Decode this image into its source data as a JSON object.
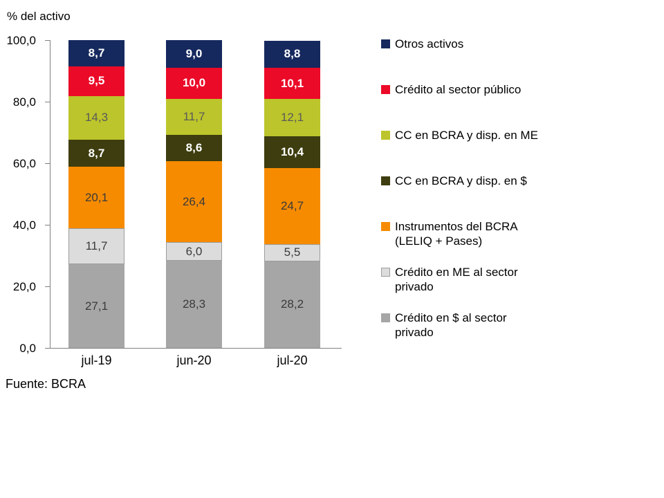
{
  "title": "% del activo",
  "source": "Fuente: BCRA",
  "chart_data": {
    "type": "bar",
    "stacked": true,
    "title": "% del activo",
    "ylabel": "",
    "xlabel": "",
    "ylim": [
      0,
      100
    ],
    "grid": false,
    "legend_position": "right",
    "yticks": [
      "100,0",
      "80,0",
      "60,0",
      "40,0",
      "20,0",
      "0,0"
    ],
    "ytick_values": [
      100,
      80,
      60,
      40,
      20,
      0
    ],
    "categories": [
      "jul-19",
      "jun-20",
      "jul-20"
    ],
    "series": [
      {
        "name": "Crédito en $ al sector privado",
        "values": [
          27.1,
          28.3,
          28.2
        ],
        "color": "#a6a6a6",
        "border": null,
        "label_style": "dark",
        "label_color": "#3a3a3a"
      },
      {
        "name": "Crédito en ME al sector privado",
        "values": [
          11.7,
          6.0,
          5.5
        ],
        "color": "#dcdcdc",
        "border": "#9c9c9c",
        "label_style": "dark",
        "label_color": "#3a3a3a"
      },
      {
        "name": "Instrumentos del BCRA (LELIQ + Pases)",
        "values": [
          20.1,
          26.4,
          24.7
        ],
        "color": "#f68b00",
        "border": null,
        "label_style": "dark",
        "label_color": "#3a3a3a"
      },
      {
        "name": "CC en BCRA y disp. en $",
        "values": [
          8.7,
          8.6,
          10.4
        ],
        "color": "#3d3d0f",
        "border": null,
        "label_style": "light",
        "label_color": "#ffffff"
      },
      {
        "name": "CC en BCRA y disp. en ME",
        "values": [
          14.3,
          11.7,
          12.1
        ],
        "color": "#bcc52b",
        "border": null,
        "label_style": "dark",
        "label_color": "#595959"
      },
      {
        "name": "Crédito al sector público",
        "values": [
          9.5,
          10.0,
          10.1
        ],
        "color": "#eb0a28",
        "border": null,
        "label_style": "light",
        "label_color": "#ffffff"
      },
      {
        "name": "Otros activos",
        "values": [
          8.7,
          9.0,
          8.8
        ],
        "color": "#16295e",
        "border": null,
        "label_style": "light",
        "label_color": "#ffffff"
      }
    ],
    "legend": [
      {
        "label": "Otros activos",
        "color": "#16295e",
        "border": null
      },
      {
        "label": "Crédito al sector público",
        "color": "#eb0a28",
        "border": null
      },
      {
        "label": "CC en BCRA y disp. en ME",
        "color": "#bcc52b",
        "border": null
      },
      {
        "label": "CC en BCRA y disp. en $",
        "color": "#3d3d0f",
        "border": null
      },
      {
        "label": "Instrumentos del BCRA\n(LELIQ + Pases)",
        "color": "#f68b00",
        "border": null
      },
      {
        "label": "Crédito en ME al sector\nprivado",
        "color": "#dcdcdc",
        "border": "#9c9c9c"
      },
      {
        "label": "Crédito en $ al sector\nprivado",
        "color": "#a6a6a6",
        "border": null
      }
    ],
    "axis_color": "#7f7f7f"
  }
}
